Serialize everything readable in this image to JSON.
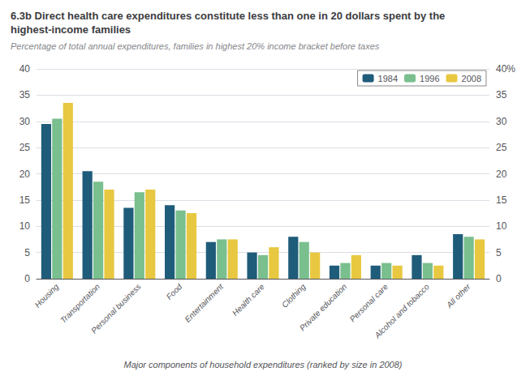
{
  "chart_data": {
    "type": "bar",
    "title": "6.3b Direct health care expenditures constitute less than one in 20 dollars spent by the highest-income families",
    "subtitle": "Percentage of total annual expenditures, families in highest 20% income bracket before taxes",
    "xlabel": "Major components of household expenditures (ranked by size in 2008)",
    "categories": [
      "Housing",
      "Transportation",
      "Personal business",
      "Food",
      "Entertainment",
      "Health care",
      "Clothing",
      "Private education",
      "Personal care",
      "Alcohol and tobacco",
      "All other"
    ],
    "series": [
      {
        "name": "1984",
        "color": "#1f5c7a",
        "values": [
          29.5,
          20.5,
          13.5,
          14.0,
          7.0,
          5.0,
          8.0,
          2.5,
          2.5,
          4.5,
          8.5
        ]
      },
      {
        "name": "1996",
        "color": "#7abf8e",
        "values": [
          30.5,
          18.5,
          16.5,
          13.0,
          7.5,
          4.5,
          7.0,
          3.0,
          3.0,
          3.0,
          8.0
        ]
      },
      {
        "name": "2008",
        "color": "#e8c840",
        "values": [
          33.5,
          17.0,
          17.0,
          12.5,
          7.5,
          6.0,
          5.0,
          4.5,
          2.5,
          2.5,
          7.5
        ]
      }
    ],
    "ylim": [
      0,
      40
    ],
    "yticks": [
      0,
      5,
      10,
      15,
      20,
      25,
      30,
      35,
      40
    ],
    "y2lim": [
      0,
      40
    ],
    "y2ticks": [
      0,
      5,
      10,
      15,
      20,
      25,
      30,
      35,
      {
        "value": 40,
        "label": "40%"
      }
    ],
    "grid": true,
    "legend": "upper right"
  }
}
